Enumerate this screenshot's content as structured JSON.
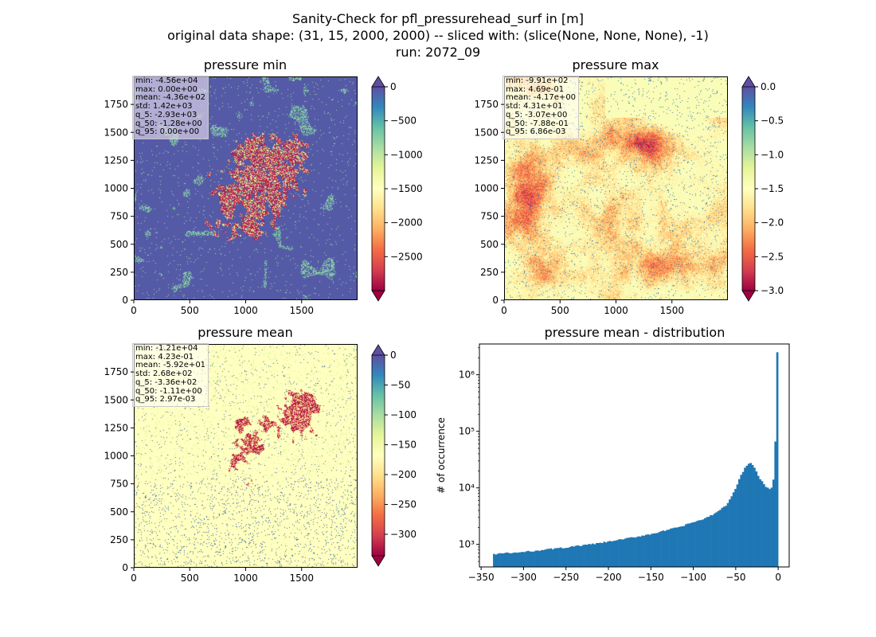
{
  "figure": {
    "title_lines": [
      "Sanity-Check for pfl_pressurehead_surf in [m]",
      "original data shape: (31, 15, 2000, 2000) -- sliced with: (slice(None, None, None), -1)",
      "run: 2072_09"
    ]
  },
  "colormap": {
    "name": "Spectral",
    "stops": [
      "#9e0142",
      "#d53e4f",
      "#f46d43",
      "#fdae61",
      "#fee08b",
      "#ffffbf",
      "#e6f598",
      "#abdda4",
      "#66c2a5",
      "#3288bd",
      "#5e4fa2"
    ]
  },
  "chart_data": [
    {
      "id": "pressure_min",
      "type": "heatmap",
      "title": "pressure min",
      "x_ticks": [
        0,
        500,
        1000,
        1500
      ],
      "y_ticks": [
        0,
        250,
        500,
        750,
        1000,
        1250,
        1500,
        1750
      ],
      "extent": [
        0,
        2000,
        0,
        2000
      ],
      "colorbar": {
        "vmin": -3000,
        "vmax": 0,
        "ticks": [
          0,
          -500,
          -1000,
          -1500,
          -2000,
          -2500
        ],
        "tick_labels": [
          "0",
          "−500",
          "−1000",
          "−1500",
          "−2000",
          "−2500"
        ],
        "extend": "both"
      },
      "stats": [
        "min: -4.56e+04",
        "max: 0.00e+00",
        "mean: -4.36e+02",
        "std: 1.42e+03",
        "q_5: -2.93e+03",
        "q_50: -1.28e+00",
        "q_95: 0.00e+00"
      ]
    },
    {
      "id": "pressure_max",
      "type": "heatmap",
      "title": "pressure max",
      "x_ticks": [
        0,
        500,
        1000,
        1500
      ],
      "y_ticks": [
        0,
        250,
        500,
        750,
        1000,
        1250,
        1500,
        1750
      ],
      "extent": [
        0,
        2000,
        0,
        2000
      ],
      "colorbar": {
        "vmin": -3.0,
        "vmax": 0.0,
        "ticks": [
          0.0,
          -0.5,
          -1.0,
          -1.5,
          -2.0,
          -2.5,
          -3.0
        ],
        "tick_labels": [
          "0.0",
          "−0.5",
          "−1.0",
          "−1.5",
          "−2.0",
          "−2.5",
          "−3.0"
        ],
        "extend": "both"
      },
      "stats": [
        "min: -9.91e+02",
        "max: 4.69e-01",
        "mean: -4.17e+00",
        "std: 4.31e+01",
        "q_5: -3.07e+00",
        "q_50: -7.88e-01",
        "q_95: 6.86e-03"
      ]
    },
    {
      "id": "pressure_mean",
      "type": "heatmap",
      "title": "pressure mean",
      "x_ticks": [
        0,
        500,
        1000,
        1500
      ],
      "y_ticks": [
        0,
        250,
        500,
        750,
        1000,
        1250,
        1500,
        1750
      ],
      "extent": [
        0,
        2000,
        0,
        2000
      ],
      "colorbar": {
        "vmin": -336,
        "vmax": 0,
        "ticks": [
          0,
          -50,
          -100,
          -150,
          -200,
          -250,
          -300
        ],
        "tick_labels": [
          "0",
          "−50",
          "−100",
          "−150",
          "−200",
          "−250",
          "−300"
        ],
        "extend": "both"
      },
      "stats": [
        "min: -1.21e+04",
        "max: 4.23e-01",
        "mean: -5.92e+01",
        "std: 2.68e+02",
        "q_5: -3.36e+02",
        "q_50: -1.11e+00",
        "q_95: 2.97e-03"
      ]
    },
    {
      "id": "pressure_mean_distribution",
      "type": "bar",
      "title": "pressure mean - distribution",
      "ylabel": "# of occurrence",
      "yscale": "log",
      "xlim": [
        -352,
        13
      ],
      "ylim": [
        400,
        3500000
      ],
      "x_ticks": [
        -350,
        -300,
        -250,
        -200,
        -150,
        -100,
        -50,
        0
      ],
      "x_tick_labels": [
        "−350",
        "−300",
        "−250",
        "−200",
        "−150",
        "−100",
        "−50",
        "0"
      ],
      "y_ticks": [
        1000,
        10000,
        100000,
        1000000
      ],
      "y_tick_labels": [
        "10³",
        "10⁴",
        "10⁵",
        "10⁶"
      ],
      "color": "#1f77b4",
      "bin_range": [
        -336,
        0
      ],
      "bin_count": 150,
      "shape_points": [
        [
          -336,
          650
        ],
        [
          -330,
          690
        ],
        [
          -320,
          700
        ],
        [
          -310,
          710
        ],
        [
          -300,
          730
        ],
        [
          -290,
          760
        ],
        [
          -280,
          790
        ],
        [
          -270,
          820
        ],
        [
          -260,
          850
        ],
        [
          -250,
          880
        ],
        [
          -240,
          920
        ],
        [
          -230,
          960
        ],
        [
          -220,
          1000
        ],
        [
          -210,
          1050
        ],
        [
          -200,
          1110
        ],
        [
          -190,
          1180
        ],
        [
          -180,
          1250
        ],
        [
          -170,
          1330
        ],
        [
          -160,
          1420
        ],
        [
          -150,
          1520
        ],
        [
          -140,
          1640
        ],
        [
          -130,
          1780
        ],
        [
          -120,
          1950
        ],
        [
          -110,
          2150
        ],
        [
          -100,
          2450
        ],
        [
          -90,
          2700
        ],
        [
          -80,
          3100
        ],
        [
          -70,
          3800
        ],
        [
          -60,
          5000
        ],
        [
          -55,
          6500
        ],
        [
          -50,
          9000
        ],
        [
          -45,
          14000
        ],
        [
          -40,
          20000
        ],
        [
          -36,
          25000
        ],
        [
          -32,
          29000
        ],
        [
          -29,
          26000
        ],
        [
          -26,
          21000
        ],
        [
          -22,
          16000
        ],
        [
          -18,
          13000
        ],
        [
          -14,
          10500
        ],
        [
          -10,
          9500
        ],
        [
          -7,
          10000
        ],
        [
          -5,
          12000
        ],
        [
          -3,
          20000
        ],
        [
          -2,
          100000
        ],
        [
          -1,
          500000
        ],
        [
          0,
          2500000
        ]
      ]
    }
  ]
}
